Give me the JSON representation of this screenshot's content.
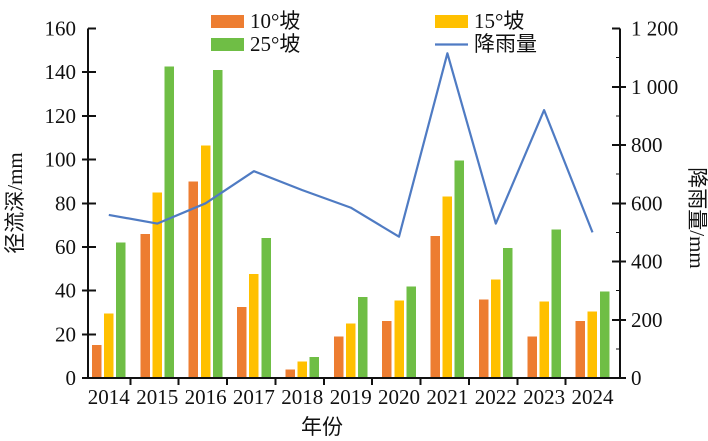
{
  "figure": {
    "x_axis_title": "年份",
    "left_axis_title": "径流深/mm",
    "right_axis_title": "降雨量/mm"
  },
  "chart_data": {
    "type": "bar",
    "subtype": "grouped-bars-with-secondary-axis-line",
    "title": "",
    "categories": [
      "2014",
      "2015",
      "2016",
      "2017",
      "2018",
      "2019",
      "2020",
      "2021",
      "2022",
      "2023",
      "2024"
    ],
    "series": [
      {
        "name": "10°坡",
        "type": "bar",
        "axis": "left",
        "color": "#ED7D31",
        "values": [
          15,
          66,
          90,
          32.5,
          4,
          19,
          26,
          65,
          36,
          19,
          26
        ]
      },
      {
        "name": "15°坡",
        "type": "bar",
        "axis": "left",
        "color": "#FFC000",
        "values": [
          29.5,
          85,
          106.5,
          47.5,
          7.5,
          25,
          35.5,
          83,
          45,
          35,
          30.5
        ]
      },
      {
        "name": "25°坡",
        "type": "bar",
        "axis": "left",
        "color": "#6FBE45",
        "values": [
          62,
          142.5,
          141,
          64,
          9.5,
          37,
          42,
          99.5,
          59.5,
          68,
          39.5
        ]
      },
      {
        "name": "降雨量",
        "type": "line",
        "axis": "right",
        "color": "#4F7BC3",
        "values": [
          560,
          530,
          600,
          710,
          645,
          585,
          485,
          1115,
          530,
          920,
          500
        ]
      }
    ],
    "left_axis": {
      "label": "径流深/mm",
      "min": 0,
      "max": 160,
      "step": 20,
      "tick_labels": [
        "0",
        "20",
        "40",
        "60",
        "80",
        "100",
        "120",
        "140",
        "160"
      ]
    },
    "right_axis": {
      "label": "降雨量/mm",
      "min": 0,
      "max": 1200,
      "step": 200,
      "tick_labels": [
        "0",
        "200",
        "400",
        "600",
        "800",
        "1 000",
        "1 200"
      ]
    },
    "x_axis": {
      "label": "年份"
    },
    "legend_position": "top-two-columns",
    "legend_order": [
      "10°坡",
      "15°坡",
      "25°坡",
      "降雨量"
    ],
    "grid": false,
    "axis_color": "#111111"
  }
}
